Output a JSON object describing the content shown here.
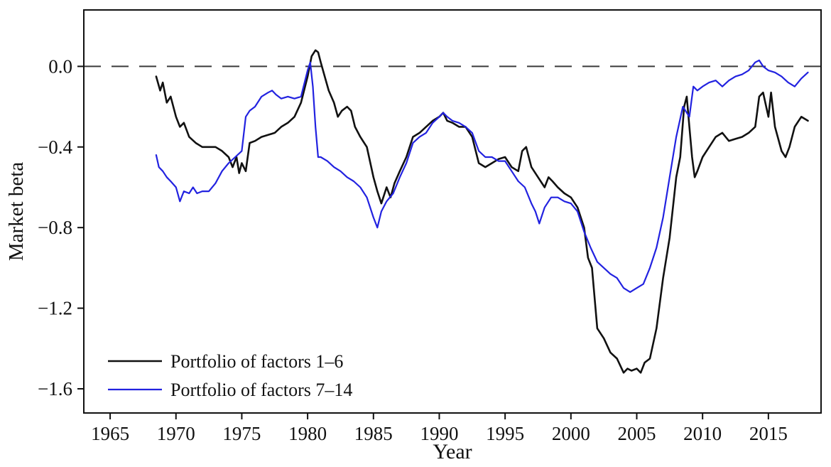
{
  "chart_data": {
    "type": "line",
    "title": "",
    "xlabel": "Year",
    "ylabel": "Market beta",
    "xlim": [
      1963,
      2019
    ],
    "ylim": [
      -1.72,
      0.28
    ],
    "grid": false,
    "legend_position": "lower-left",
    "xticks": [
      1965,
      1970,
      1975,
      1980,
      1985,
      1990,
      1995,
      2000,
      2005,
      2010,
      2015
    ],
    "xtick_labels": [
      "1965",
      "1970",
      "1975",
      "1980",
      "1985",
      "1990",
      "1995",
      "2000",
      "2005",
      "2010",
      "2015"
    ],
    "yticks": [
      0.0,
      -0.4,
      -0.8,
      -1.2,
      -1.6
    ],
    "ytick_labels": [
      "0.0",
      "−0.4",
      "−0.8",
      "−1.2",
      "−1.6"
    ],
    "zero_line": {
      "y": 0.0,
      "style": "dashed",
      "color": "#3a3a3a"
    },
    "frame_color": "#111111",
    "series": [
      {
        "name": "Portfolio of factors 1–6",
        "color": "#111111",
        "width": 2.6,
        "points": [
          [
            1968.5,
            -0.05
          ],
          [
            1968.8,
            -0.12
          ],
          [
            1969.0,
            -0.08
          ],
          [
            1969.3,
            -0.18
          ],
          [
            1969.6,
            -0.15
          ],
          [
            1970.0,
            -0.25
          ],
          [
            1970.3,
            -0.3
          ],
          [
            1970.6,
            -0.28
          ],
          [
            1971.0,
            -0.35
          ],
          [
            1971.5,
            -0.38
          ],
          [
            1972.0,
            -0.4
          ],
          [
            1972.5,
            -0.4
          ],
          [
            1973.0,
            -0.4
          ],
          [
            1973.5,
            -0.42
          ],
          [
            1974.0,
            -0.45
          ],
          [
            1974.3,
            -0.5
          ],
          [
            1974.6,
            -0.45
          ],
          [
            1974.8,
            -0.53
          ],
          [
            1975.0,
            -0.48
          ],
          [
            1975.3,
            -0.52
          ],
          [
            1975.6,
            -0.38
          ],
          [
            1976.0,
            -0.37
          ],
          [
            1976.5,
            -0.35
          ],
          [
            1977.0,
            -0.34
          ],
          [
            1977.5,
            -0.33
          ],
          [
            1978.0,
            -0.3
          ],
          [
            1978.5,
            -0.28
          ],
          [
            1979.0,
            -0.25
          ],
          [
            1979.5,
            -0.18
          ],
          [
            1980.0,
            -0.05
          ],
          [
            1980.3,
            0.05
          ],
          [
            1980.6,
            0.08
          ],
          [
            1980.8,
            0.07
          ],
          [
            1981.0,
            0.02
          ],
          [
            1981.3,
            -0.05
          ],
          [
            1981.6,
            -0.12
          ],
          [
            1982.0,
            -0.18
          ],
          [
            1982.3,
            -0.25
          ],
          [
            1982.6,
            -0.22
          ],
          [
            1983.0,
            -0.2
          ],
          [
            1983.3,
            -0.22
          ],
          [
            1983.6,
            -0.3
          ],
          [
            1984.0,
            -0.35
          ],
          [
            1984.5,
            -0.4
          ],
          [
            1985.0,
            -0.55
          ],
          [
            1985.3,
            -0.62
          ],
          [
            1985.6,
            -0.68
          ],
          [
            1986.0,
            -0.6
          ],
          [
            1986.3,
            -0.65
          ],
          [
            1986.6,
            -0.58
          ],
          [
            1987.0,
            -0.52
          ],
          [
            1987.5,
            -0.45
          ],
          [
            1988.0,
            -0.35
          ],
          [
            1988.5,
            -0.33
          ],
          [
            1989.0,
            -0.3
          ],
          [
            1989.5,
            -0.27
          ],
          [
            1990.0,
            -0.25
          ],
          [
            1990.3,
            -0.23
          ],
          [
            1990.6,
            -0.27
          ],
          [
            1991.0,
            -0.28
          ],
          [
            1991.5,
            -0.3
          ],
          [
            1992.0,
            -0.3
          ],
          [
            1992.5,
            -0.35
          ],
          [
            1993.0,
            -0.48
          ],
          [
            1993.5,
            -0.5
          ],
          [
            1994.0,
            -0.48
          ],
          [
            1994.5,
            -0.46
          ],
          [
            1995.0,
            -0.45
          ],
          [
            1995.5,
            -0.5
          ],
          [
            1996.0,
            -0.52
          ],
          [
            1996.3,
            -0.42
          ],
          [
            1996.6,
            -0.4
          ],
          [
            1997.0,
            -0.5
          ],
          [
            1997.5,
            -0.55
          ],
          [
            1998.0,
            -0.6
          ],
          [
            1998.3,
            -0.55
          ],
          [
            1998.6,
            -0.57
          ],
          [
            1999.0,
            -0.6
          ],
          [
            1999.5,
            -0.63
          ],
          [
            2000.0,
            -0.65
          ],
          [
            2000.5,
            -0.7
          ],
          [
            2001.0,
            -0.8
          ],
          [
            2001.3,
            -0.95
          ],
          [
            2001.6,
            -1.0
          ],
          [
            2002.0,
            -1.3
          ],
          [
            2002.5,
            -1.35
          ],
          [
            2003.0,
            -1.42
          ],
          [
            2003.5,
            -1.45
          ],
          [
            2004.0,
            -1.52
          ],
          [
            2004.3,
            -1.5
          ],
          [
            2004.6,
            -1.51
          ],
          [
            2005.0,
            -1.5
          ],
          [
            2005.3,
            -1.52
          ],
          [
            2005.6,
            -1.47
          ],
          [
            2006.0,
            -1.45
          ],
          [
            2006.5,
            -1.3
          ],
          [
            2007.0,
            -1.05
          ],
          [
            2007.5,
            -0.85
          ],
          [
            2008.0,
            -0.55
          ],
          [
            2008.3,
            -0.45
          ],
          [
            2008.6,
            -0.2
          ],
          [
            2008.8,
            -0.15
          ],
          [
            2009.0,
            -0.3
          ],
          [
            2009.2,
            -0.45
          ],
          [
            2009.4,
            -0.55
          ],
          [
            2009.6,
            -0.52
          ],
          [
            2010.0,
            -0.45
          ],
          [
            2010.5,
            -0.4
          ],
          [
            2011.0,
            -0.35
          ],
          [
            2011.5,
            -0.33
          ],
          [
            2012.0,
            -0.37
          ],
          [
            2012.5,
            -0.36
          ],
          [
            2013.0,
            -0.35
          ],
          [
            2013.5,
            -0.33
          ],
          [
            2014.0,
            -0.3
          ],
          [
            2014.3,
            -0.15
          ],
          [
            2014.6,
            -0.13
          ],
          [
            2015.0,
            -0.25
          ],
          [
            2015.2,
            -0.13
          ],
          [
            2015.5,
            -0.3
          ],
          [
            2016.0,
            -0.42
          ],
          [
            2016.3,
            -0.45
          ],
          [
            2016.6,
            -0.4
          ],
          [
            2017.0,
            -0.3
          ],
          [
            2017.5,
            -0.25
          ],
          [
            2018.0,
            -0.27
          ]
        ]
      },
      {
        "name": "Portfolio of factors 7–14",
        "color": "#2222e0",
        "width": 2.2,
        "points": [
          [
            1968.5,
            -0.44
          ],
          [
            1968.7,
            -0.5
          ],
          [
            1969.0,
            -0.52
          ],
          [
            1969.3,
            -0.55
          ],
          [
            1969.6,
            -0.57
          ],
          [
            1970.0,
            -0.6
          ],
          [
            1970.3,
            -0.67
          ],
          [
            1970.6,
            -0.62
          ],
          [
            1971.0,
            -0.63
          ],
          [
            1971.3,
            -0.6
          ],
          [
            1971.6,
            -0.63
          ],
          [
            1972.0,
            -0.62
          ],
          [
            1972.5,
            -0.62
          ],
          [
            1973.0,
            -0.58
          ],
          [
            1973.5,
            -0.52
          ],
          [
            1974.0,
            -0.48
          ],
          [
            1974.5,
            -0.45
          ],
          [
            1975.0,
            -0.42
          ],
          [
            1975.3,
            -0.25
          ],
          [
            1975.6,
            -0.22
          ],
          [
            1976.0,
            -0.2
          ],
          [
            1976.5,
            -0.15
          ],
          [
            1977.0,
            -0.13
          ],
          [
            1977.3,
            -0.12
          ],
          [
            1977.6,
            -0.14
          ],
          [
            1978.0,
            -0.16
          ],
          [
            1978.5,
            -0.15
          ],
          [
            1979.0,
            -0.16
          ],
          [
            1979.5,
            -0.15
          ],
          [
            1980.0,
            -0.02
          ],
          [
            1980.2,
            0.02
          ],
          [
            1980.4,
            -0.1
          ],
          [
            1980.6,
            -0.3
          ],
          [
            1980.8,
            -0.45
          ],
          [
            1981.0,
            -0.45
          ],
          [
            1981.5,
            -0.47
          ],
          [
            1982.0,
            -0.5
          ],
          [
            1982.5,
            -0.52
          ],
          [
            1983.0,
            -0.55
          ],
          [
            1983.5,
            -0.57
          ],
          [
            1984.0,
            -0.6
          ],
          [
            1984.5,
            -0.65
          ],
          [
            1985.0,
            -0.75
          ],
          [
            1985.3,
            -0.8
          ],
          [
            1985.6,
            -0.72
          ],
          [
            1986.0,
            -0.67
          ],
          [
            1986.5,
            -0.63
          ],
          [
            1987.0,
            -0.55
          ],
          [
            1987.5,
            -0.48
          ],
          [
            1988.0,
            -0.38
          ],
          [
            1988.5,
            -0.35
          ],
          [
            1989.0,
            -0.33
          ],
          [
            1989.5,
            -0.28
          ],
          [
            1990.0,
            -0.25
          ],
          [
            1990.3,
            -0.23
          ],
          [
            1990.6,
            -0.25
          ],
          [
            1991.0,
            -0.27
          ],
          [
            1991.5,
            -0.28
          ],
          [
            1992.0,
            -0.3
          ],
          [
            1992.5,
            -0.33
          ],
          [
            1993.0,
            -0.42
          ],
          [
            1993.5,
            -0.45
          ],
          [
            1994.0,
            -0.45
          ],
          [
            1994.5,
            -0.47
          ],
          [
            1995.0,
            -0.47
          ],
          [
            1995.5,
            -0.52
          ],
          [
            1996.0,
            -0.57
          ],
          [
            1996.5,
            -0.6
          ],
          [
            1997.0,
            -0.68
          ],
          [
            1997.3,
            -0.72
          ],
          [
            1997.6,
            -0.78
          ],
          [
            1998.0,
            -0.7
          ],
          [
            1998.5,
            -0.65
          ],
          [
            1999.0,
            -0.65
          ],
          [
            1999.5,
            -0.67
          ],
          [
            2000.0,
            -0.68
          ],
          [
            2000.5,
            -0.72
          ],
          [
            2001.0,
            -0.82
          ],
          [
            2001.5,
            -0.9
          ],
          [
            2002.0,
            -0.97
          ],
          [
            2002.5,
            -1.0
          ],
          [
            2003.0,
            -1.03
          ],
          [
            2003.5,
            -1.05
          ],
          [
            2004.0,
            -1.1
          ],
          [
            2004.5,
            -1.12
          ],
          [
            2005.0,
            -1.1
          ],
          [
            2005.5,
            -1.08
          ],
          [
            2006.0,
            -1.0
          ],
          [
            2006.5,
            -0.9
          ],
          [
            2007.0,
            -0.75
          ],
          [
            2007.5,
            -0.55
          ],
          [
            2008.0,
            -0.35
          ],
          [
            2008.5,
            -0.2
          ],
          [
            2009.0,
            -0.25
          ],
          [
            2009.3,
            -0.1
          ],
          [
            2009.6,
            -0.12
          ],
          [
            2010.0,
            -0.1
          ],
          [
            2010.5,
            -0.08
          ],
          [
            2011.0,
            -0.07
          ],
          [
            2011.5,
            -0.1
          ],
          [
            2012.0,
            -0.07
          ],
          [
            2012.5,
            -0.05
          ],
          [
            2013.0,
            -0.04
          ],
          [
            2013.5,
            -0.02
          ],
          [
            2014.0,
            0.02
          ],
          [
            2014.3,
            0.03
          ],
          [
            2014.6,
            0.0
          ],
          [
            2015.0,
            -0.02
          ],
          [
            2015.5,
            -0.03
          ],
          [
            2016.0,
            -0.05
          ],
          [
            2016.5,
            -0.08
          ],
          [
            2017.0,
            -0.1
          ],
          [
            2017.5,
            -0.06
          ],
          [
            2018.0,
            -0.03
          ]
        ]
      }
    ]
  }
}
